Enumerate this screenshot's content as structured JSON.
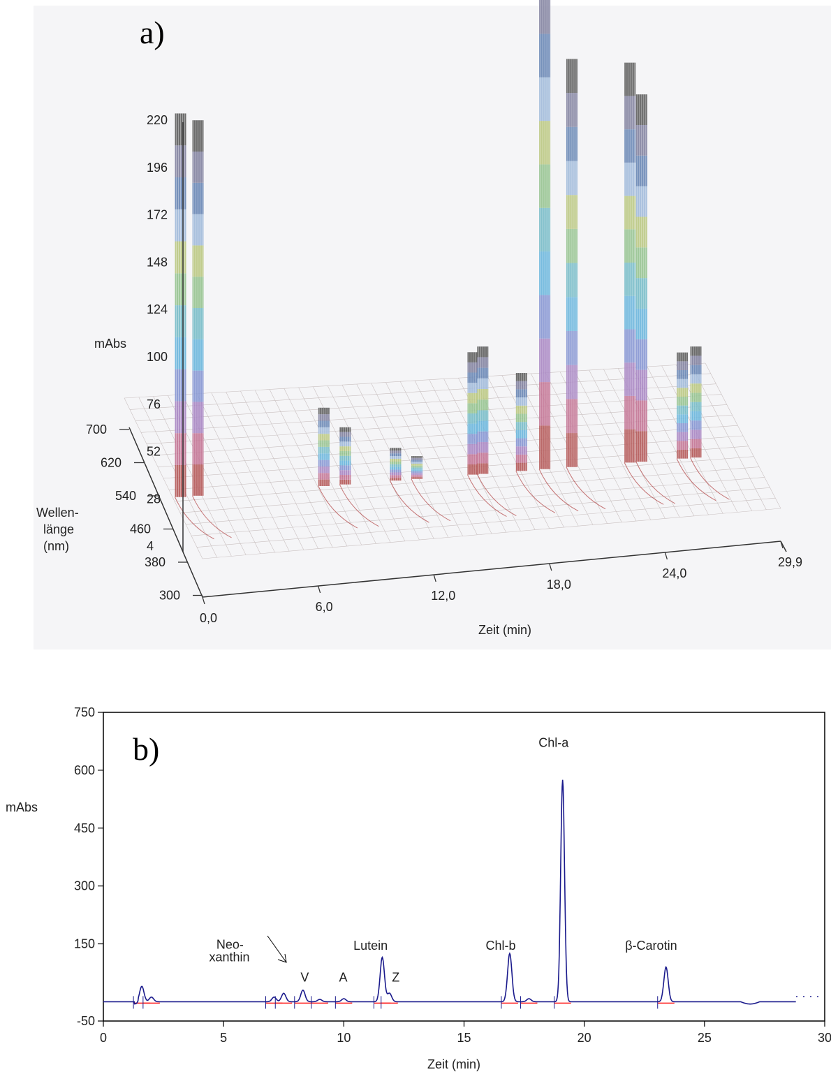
{
  "chart_data": [
    {
      "panel_label": "a)",
      "type": "surface3d",
      "z_label": "mAbs",
      "z_ticks": [
        "220",
        "196",
        "172",
        "148",
        "124",
        "100",
        "76",
        "52",
        "28",
        "4"
      ],
      "y_label": "Wellen-\nlänge\n(nm)",
      "y_ticks": [
        "700",
        "620",
        "540",
        "460",
        "380",
        "300"
      ],
      "x_label": "Zeit (min)",
      "x_ticks": [
        "0,0",
        "6,0",
        "12,0",
        "18,0",
        "24,0",
        "29,9"
      ],
      "peaks": [
        {
          "time": 0.4,
          "height": 235
        },
        {
          "time": 1.3,
          "height": 230
        },
        {
          "time": 7.8,
          "height": 48
        },
        {
          "time": 8.9,
          "height": 35
        },
        {
          "time": 11.5,
          "height": 20
        },
        {
          "time": 12.6,
          "height": 14
        },
        {
          "time": 15.5,
          "height": 75
        },
        {
          "time": 16.0,
          "height": 78
        },
        {
          "time": 18.0,
          "height": 60
        },
        {
          "time": 19.2,
          "height": 320
        },
        {
          "time": 20.6,
          "height": 250
        },
        {
          "time": 23.6,
          "height": 245
        },
        {
          "time": 24.2,
          "height": 225
        },
        {
          "time": 26.3,
          "height": 65
        },
        {
          "time": 27.0,
          "height": 68
        }
      ]
    },
    {
      "panel_label": "b)",
      "type": "line",
      "xlabel": "Zeit (min)",
      "ylabel": "mAbs",
      "xlim": [
        0,
        30
      ],
      "ylim": [
        -50,
        750
      ],
      "x_ticks": [
        0,
        5,
        10,
        15,
        20,
        25,
        30
      ],
      "y_ticks": [
        -50,
        150,
        300,
        450,
        600,
        750
      ],
      "baseline": 0,
      "peaks": [
        {
          "x": 1.6,
          "y": 40
        },
        {
          "x": 2.0,
          "y": 12
        },
        {
          "x": 7.1,
          "y": 12
        },
        {
          "x": 7.5,
          "y": 22
        },
        {
          "x": 8.3,
          "y": 30
        },
        {
          "x": 9.0,
          "y": 6
        },
        {
          "x": 10.0,
          "y": 8
        },
        {
          "x": 11.6,
          "y": 115
        },
        {
          "x": 11.9,
          "y": 22
        },
        {
          "x": 16.9,
          "y": 125
        },
        {
          "x": 17.7,
          "y": 8
        },
        {
          "x": 19.1,
          "y": 575
        },
        {
          "x": 23.4,
          "y": 90
        }
      ],
      "annotations": [
        {
          "text": "Neo-",
          "x": 4.7,
          "y": 137
        },
        {
          "text": "xanthin",
          "x": 4.4,
          "y": 105
        },
        {
          "text": "V",
          "x": 8.2,
          "y": 52
        },
        {
          "text": "A",
          "x": 9.8,
          "y": 52
        },
        {
          "text": "Lutein",
          "x": 10.4,
          "y": 135
        },
        {
          "text": "Z",
          "x": 12.0,
          "y": 52
        },
        {
          "text": "Chl-b",
          "x": 15.9,
          "y": 135
        },
        {
          "text": "Chl-a",
          "x": 18.1,
          "y": 660
        },
        {
          "text": "β-Carotin",
          "x": 21.7,
          "y": 135
        }
      ]
    }
  ],
  "colors": {
    "trace": "#1a1a8c",
    "baseline_marks": "#ff2020",
    "axis": "#000000"
  }
}
